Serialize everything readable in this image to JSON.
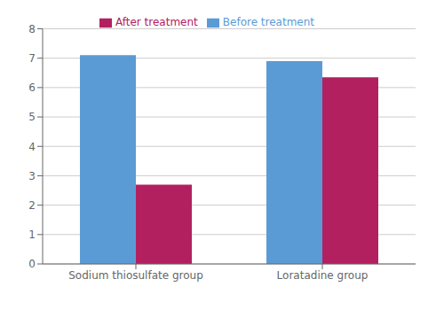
{
  "chart_data": {
    "type": "bar",
    "categories": [
      "Sodium thiosulfate group",
      "Loratadine group"
    ],
    "series": [
      {
        "name": "Before treatment",
        "color": "#5B9BD5",
        "values": [
          7.1,
          6.9
        ]
      },
      {
        "name": "After treatment",
        "color": "#B22060",
        "values": [
          2.7,
          6.35
        ]
      }
    ],
    "ylim": [
      0,
      8
    ],
    "yticks": [
      0,
      1,
      2,
      3,
      4,
      5,
      6,
      7,
      8
    ],
    "grid": true,
    "legend": "top"
  }
}
